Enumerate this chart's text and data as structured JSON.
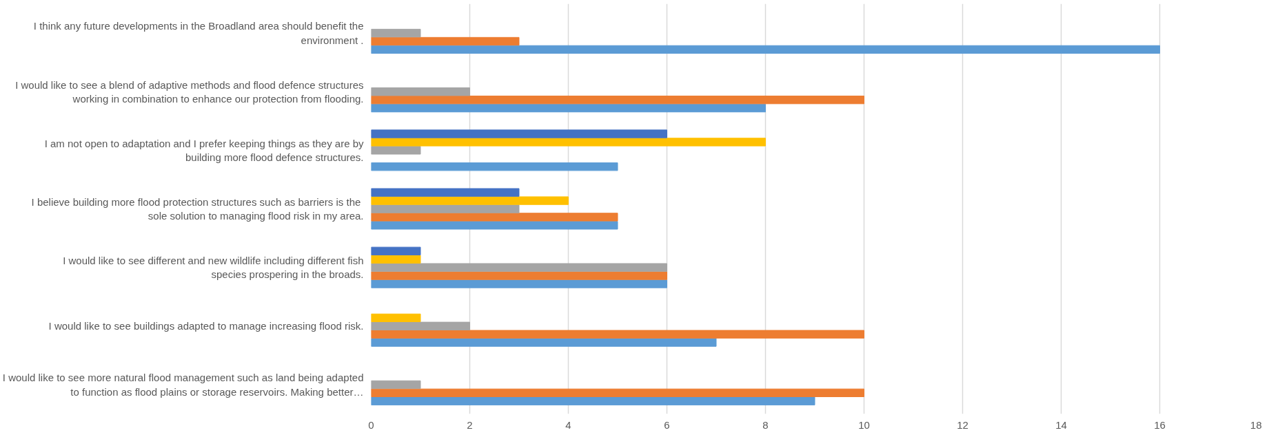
{
  "chart_data": {
    "type": "bar",
    "orientation": "horizontal",
    "categories": [
      "I think any future developments in the Broadland area should benefit the environment .",
      "I would like to see a blend of adaptive methods and flood defence structures working in combination to enhance our protection from flooding.",
      "I am not open to adaptation and I prefer keeping things as they are by building more flood defence structures.",
      "I believe building more flood protection  structures such as barriers is the sole solution to managing flood risk in my area.",
      "I would like to see different and new wildlife including different fish species prospering in the broads.",
      "I would like to see buildings adapted to manage increasing flood risk.",
      "I would like to see more natural flood management such as land being adapted to function as flood plains or storage reservoirs. Making better…"
    ],
    "series": [
      {
        "color": "#5b9bd5",
        "values": [
          16,
          8,
          5,
          5,
          6,
          7,
          9
        ]
      },
      {
        "color": "#ed7d31",
        "values": [
          3,
          10,
          null,
          5,
          6,
          10,
          10
        ]
      },
      {
        "color": "#a5a5a5",
        "values": [
          1,
          2,
          1,
          3,
          6,
          2,
          1
        ]
      },
      {
        "color": "#ffc000",
        "values": [
          null,
          null,
          8,
          4,
          1,
          1,
          null
        ]
      },
      {
        "color": "#4472c4",
        "values": [
          null,
          null,
          6,
          3,
          1,
          null,
          null
        ]
      }
    ],
    "xlim": [
      0,
      18
    ],
    "xticks": [
      0,
      2,
      4,
      6,
      8,
      10,
      12,
      14,
      16,
      18
    ],
    "grid": "x"
  }
}
